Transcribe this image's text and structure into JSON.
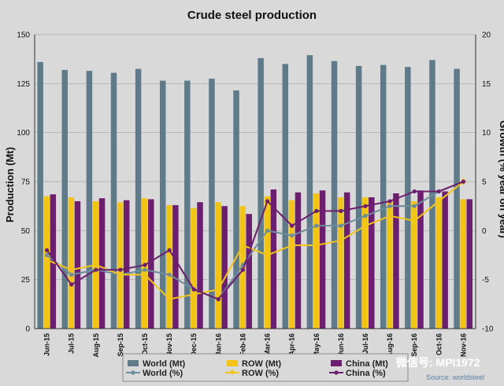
{
  "chart_data": {
    "type": "bar+line",
    "title": "Crude steel production",
    "ylabel_left": "Production (Mt)",
    "ylabel_right": "Growth (% year on year)",
    "ylim_left": [
      0,
      150
    ],
    "ylim_right": [
      -10,
      20
    ],
    "yticks_left": [
      "0",
      "25",
      "50",
      "75",
      "100",
      "125",
      "150"
    ],
    "yticks_right": [
      "-10",
      "-5",
      "0",
      "5",
      "10",
      "15",
      "20"
    ],
    "categories": [
      "Jun-15",
      "Jul-15",
      "Aug-15",
      "Sep-15",
      "Oct-15",
      "Nov-15",
      "Dec-15",
      "Jan-16",
      "Feb-16",
      "Mar-16",
      "Apr-16",
      "May-16",
      "Jun-16",
      "Jul-16",
      "Aug-16",
      "Sep-16",
      "Oct-16",
      "Nov-16"
    ],
    "bar_series": [
      {
        "name": "World (Mt)",
        "color": "#5f7b8a",
        "values": [
          136,
          132,
          131.5,
          130.5,
          132.5,
          126.5,
          126.5,
          127.5,
          121.5,
          138,
          135,
          139.5,
          136.5,
          134,
          134.5,
          133.5,
          137,
          132.5
        ]
      },
      {
        "name": "ROW (Mt)",
        "color": "#f2c418",
        "values": [
          67.5,
          67,
          65,
          64.5,
          66.5,
          63,
          61.5,
          64.5,
          62.5,
          67.5,
          65.5,
          69,
          67,
          67,
          65,
          65,
          67,
          66
        ]
      },
      {
        "name": "China (Mt)",
        "color": "#6b1f6e",
        "values": [
          68.5,
          65,
          66.5,
          65.5,
          66,
          63,
          64.5,
          62.5,
          58.5,
          71,
          69.5,
          70.5,
          69.5,
          67,
          69,
          70.5,
          70,
          66
        ]
      }
    ],
    "line_series": [
      {
        "name": "World (%)",
        "color": "#6d8c9c",
        "values": [
          -2.5,
          -4.5,
          -4,
          -4.5,
          -4,
          -4.5,
          -6,
          -7,
          -3.5,
          0,
          -0.5,
          0.5,
          0.5,
          1.5,
          2.5,
          2.5,
          4,
          5
        ]
      },
      {
        "name": "ROW (%)",
        "color": "#f2c418",
        "values": [
          -3,
          -4,
          -3.5,
          -4.5,
          -4.5,
          -7,
          -6.5,
          -6,
          -1.5,
          -2.5,
          -1.5,
          -1.5,
          -1,
          0.5,
          1.5,
          1,
          3,
          5
        ]
      },
      {
        "name": "China (%)",
        "color": "#6b1f6e",
        "values": [
          -2,
          -5.5,
          -4,
          -4,
          -3.5,
          -2,
          -6,
          -7,
          -4,
          3,
          0.5,
          2,
          2,
          2.5,
          3,
          4,
          4,
          5
        ]
      }
    ],
    "legend": [
      "World (Mt)",
      "ROW (Mt)",
      "China (Mt)",
      "World (%)",
      "ROW (%)",
      "China (%)"
    ],
    "legend_position": "bottom"
  },
  "watermark": "微信号: MPI1972",
  "source": "Source: worldsteel"
}
